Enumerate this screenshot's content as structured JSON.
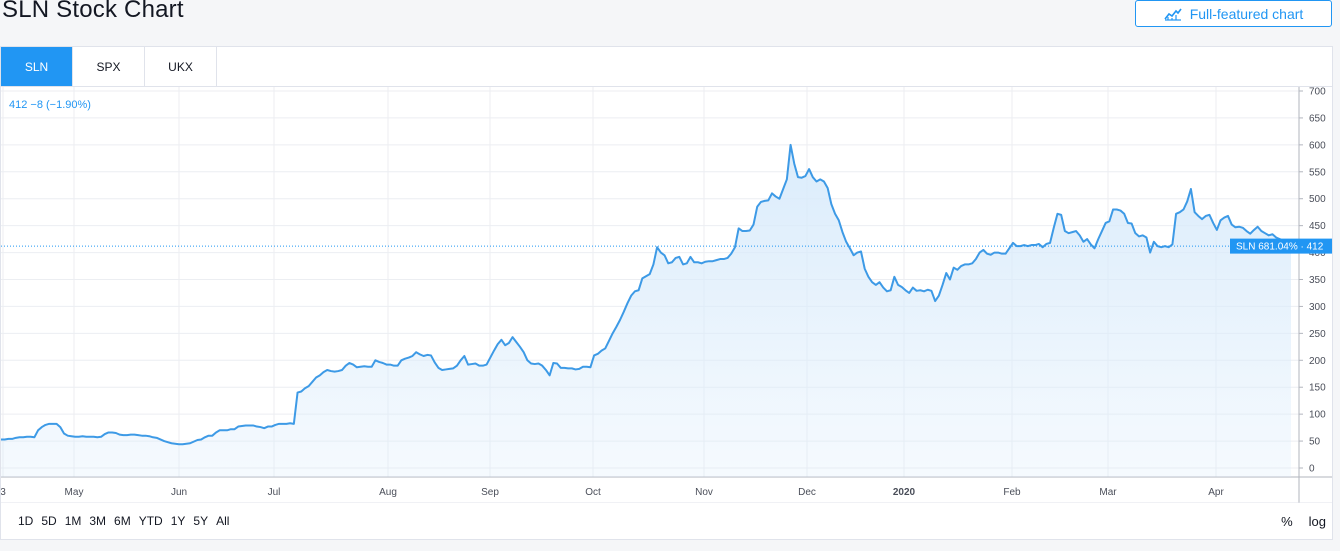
{
  "page": {
    "title": "SLN Stock Chart",
    "full_button_label": "Full-featured chart"
  },
  "tabs": [
    "SLN",
    "SPX",
    "UKX"
  ],
  "legend_text": "412 −8 (−1.90%)",
  "price_label": "SLN 681.04% · 412",
  "ranges": [
    "1D",
    "5D",
    "1M",
    "3M",
    "6M",
    "YTD",
    "1Y",
    "5Y",
    "All"
  ],
  "controls": {
    "percent": "%",
    "log": "log"
  },
  "colors": {
    "accent": "#2196f3",
    "line": "#3d9ae6",
    "fill": "#d9ebfb",
    "grid": "#eceef2"
  },
  "chart_data": {
    "type": "area",
    "symbol": "SLN",
    "ylim": [
      0,
      700
    ],
    "y_ticks": [
      "0",
      "50",
      "100",
      "150",
      "200",
      "250",
      "300",
      "350",
      "400",
      "450",
      "500",
      "550",
      "600",
      "650",
      "700"
    ],
    "x_tick_labels": [
      "3",
      "May",
      "Jun",
      "Jul",
      "Aug",
      "Sep",
      "Oct",
      "Nov",
      "Dec",
      "2020",
      "Feb",
      "Mar",
      "Apr"
    ],
    "last_value": 412,
    "last_label": "412",
    "series": [
      {
        "values": [
          53,
          53,
          54,
          54,
          56,
          57,
          57,
          58,
          58,
          57,
          70,
          76,
          80,
          82,
          82,
          82,
          76,
          64,
          60,
          59,
          58,
          58,
          59,
          58,
          58,
          58,
          57,
          58,
          63,
          66,
          66,
          65,
          62,
          61,
          61,
          62,
          62,
          61,
          60,
          60,
          59,
          57,
          56,
          53,
          50,
          48,
          46,
          45,
          44,
          44,
          45,
          46,
          49,
          52,
          53,
          57,
          60,
          60,
          66,
          70,
          70,
          70,
          72,
          72,
          77,
          78,
          79,
          79,
          79,
          77,
          76,
          74,
          77,
          77,
          80,
          82,
          82,
          82,
          83,
          82,
          140,
          142,
          148,
          152,
          160,
          168,
          172,
          178,
          182,
          180,
          179,
          180,
          182,
          190,
          195,
          192,
          187,
          188,
          189,
          188,
          188,
          200,
          197,
          195,
          192,
          192,
          190,
          190,
          200,
          203,
          205,
          208,
          215,
          211,
          208,
          210,
          209,
          196,
          186,
          182,
          183,
          184,
          185,
          190,
          200,
          208,
          192,
          193,
          194,
          190,
          190,
          192,
          205,
          218,
          230,
          238,
          228,
          232,
          243,
          234,
          225,
          215,
          200,
          194,
          193,
          194,
          190,
          182,
          172,
          195,
          194,
          186,
          186,
          185,
          185,
          183,
          184,
          188,
          188,
          187,
          209,
          212,
          218,
          222,
          236,
          250,
          262,
          275,
          290,
          306,
          320,
          328,
          330,
          352,
          356,
          360,
          378,
          410,
          400,
          395,
          380,
          382,
          390,
          392,
          378,
          380,
          392,
          382,
          382,
          380,
          383,
          384,
          384,
          386,
          388,
          388,
          390,
          398,
          410,
          445,
          440,
          440,
          441,
          452,
          485,
          494,
          496,
          497,
          510,
          504,
          500,
          518,
          536,
          600,
          565,
          540,
          539,
          542,
          555,
          540,
          532,
          536,
          532,
          520,
          490,
          472,
          460,
          438,
          420,
          408,
          395,
          400,
          402,
          370,
          355,
          345,
          340,
          345,
          335,
          328,
          330,
          355,
          340,
          336,
          330,
          325,
          335,
          329,
          330,
          328,
          331,
          329,
          310,
          320,
          340,
          362,
          350,
          372,
          368,
          375,
          378,
          378,
          380,
          388,
          400,
          405,
          398,
          396,
          400,
          400,
          398,
          398,
          408,
          418,
          412,
          412,
          414,
          412,
          414,
          414,
          416,
          410,
          416,
          418,
          446,
          472,
          470,
          440,
          436,
          438,
          440,
          432,
          420,
          425,
          415,
          408,
          425,
          440,
          455,
          458,
          480,
          480,
          478,
          472,
          455,
          454,
          436,
          430,
          432,
          428,
          400,
          420,
          412,
          410,
          412,
          410,
          415,
          472,
          475,
          480,
          495,
          518,
          475,
          468,
          462,
          468,
          470,
          455,
          442,
          460,
          465,
          468,
          452,
          447,
          448,
          446,
          440,
          435,
          442,
          448,
          440,
          436,
          432,
          434,
          428,
          425,
          420,
          415,
          412
        ]
      }
    ]
  }
}
